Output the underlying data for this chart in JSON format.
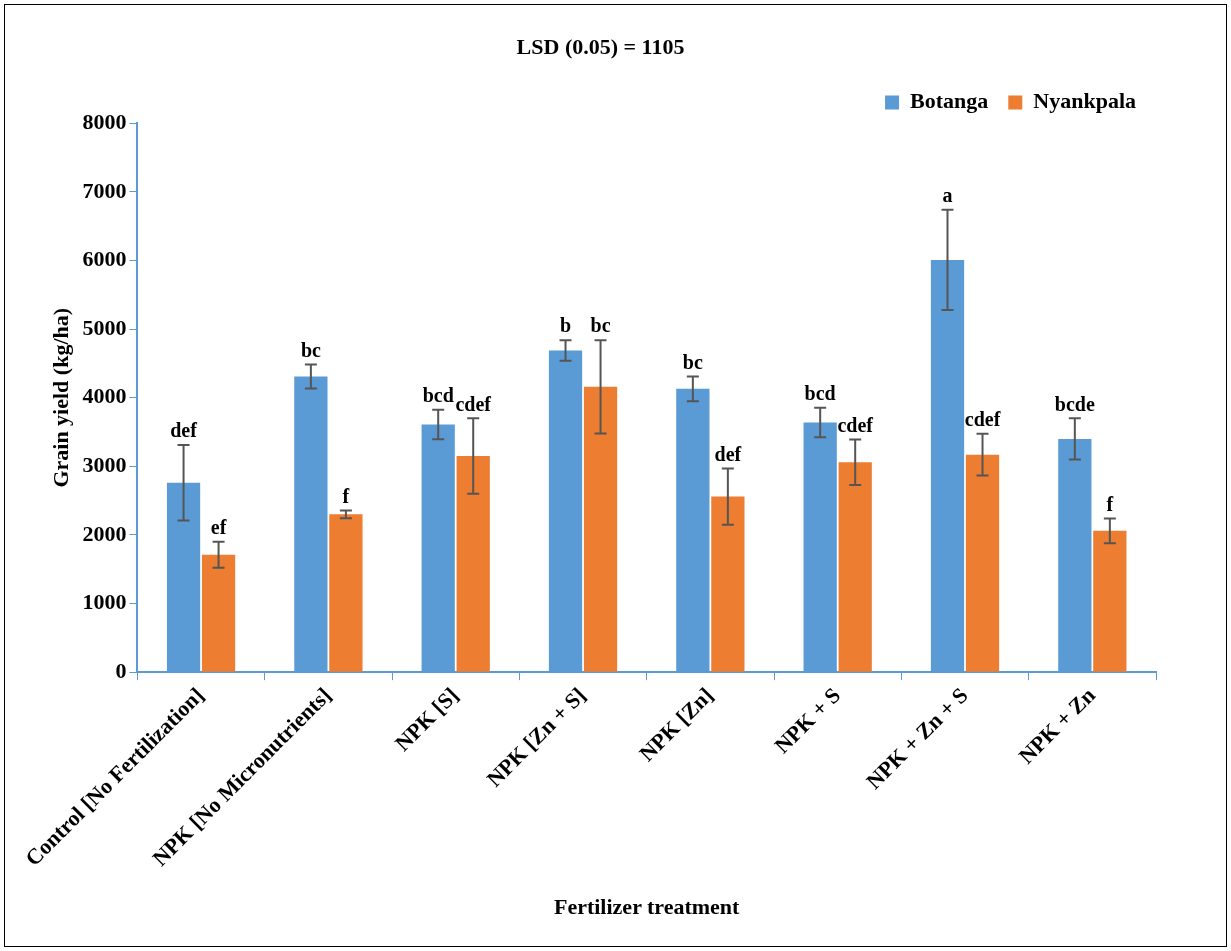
{
  "chart_data": {
    "type": "bar",
    "title": "LSD (0.05) = 1105",
    "xlabel": "Fertilizer treatment",
    "ylabel": "Grain yield (kg/ha)",
    "categories": [
      "Control [No Fertilization]",
      "NPK [No Micronutrients]",
      "NPK [S]",
      "NPK [Zn + S]",
      "NPK [Zn]",
      "NPK + S",
      "NPK + Zn + S",
      "NPK + Zn"
    ],
    "series": [
      {
        "name": "Botanga",
        "color": "#5b9bd5",
        "values": [
          2760,
          4310,
          3610,
          4690,
          4130,
          3640,
          6010,
          3400
        ],
        "errors": [
          550,
          175,
          215,
          150,
          180,
          215,
          730,
          300
        ],
        "value_labels": [
          "def",
          "bc",
          "bcd",
          "b",
          "bc",
          "bcd",
          "a",
          "bcde"
        ]
      },
      {
        "name": "Nyankpala",
        "color": "#ed7d31",
        "values": [
          1710,
          2300,
          3150,
          4160,
          2560,
          3060,
          3170,
          2060
        ],
        "errors": [
          190,
          55,
          550,
          680,
          410,
          330,
          305,
          180
        ],
        "value_labels": [
          "ef",
          "f",
          "cdef",
          "bc",
          "def",
          "cdef",
          "cdef",
          "f"
        ]
      }
    ],
    "ylim": [
      0,
      8000
    ],
    "yticks": [
      0,
      1000,
      2000,
      3000,
      4000,
      5000,
      6000,
      7000,
      8000
    ],
    "grid": false,
    "legend": "top right"
  }
}
